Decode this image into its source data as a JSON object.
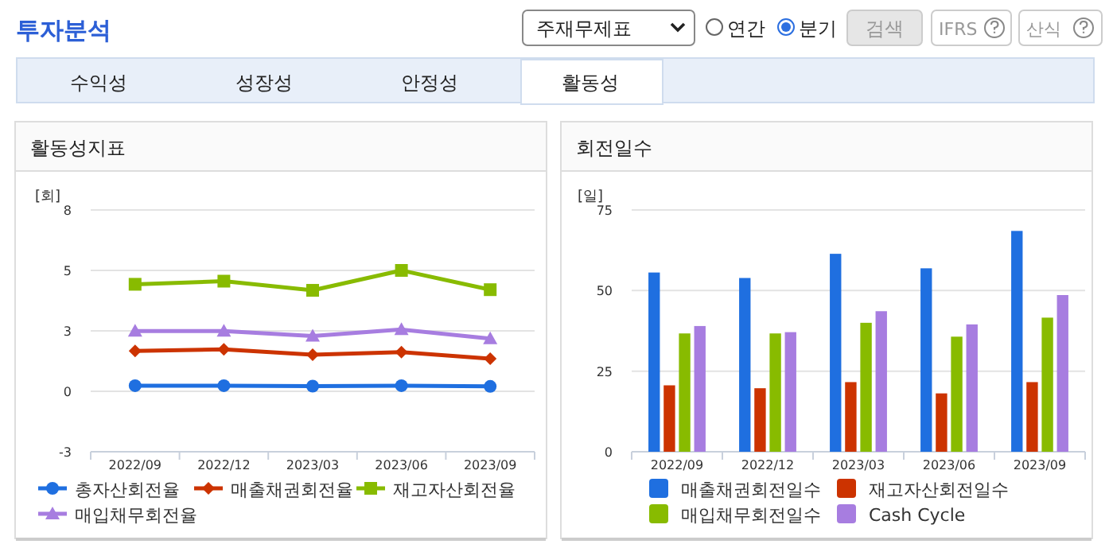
{
  "chart_data": [
    {
      "type": "other",
      "title": "투자분석",
      "annotations": [
        "주재무제표",
        "연간",
        "분기",
        "검색",
        "IFRS",
        "산식",
        "수익성",
        "성장성",
        "안정성",
        "활동성"
      ]
    },
    {
      "type": "line",
      "title": "활동성지표",
      "ylabel": "[회]",
      "categories": [
        "2022/09",
        "2022/12",
        "2023/03",
        "2023/06",
        "2023/09"
      ],
      "ylim": [
        -2.7,
        8.1
      ],
      "yticks": [
        {
          "value": -2.7,
          "label": "-3"
        },
        0,
        {
          "value": 2.7,
          "label": "3"
        },
        {
          "value": 5.4,
          "label": "5"
        },
        {
          "value": 8.1,
          "label": "8"
        }
      ],
      "grid": "y",
      "legend": "bottom",
      "line_style": "solid",
      "series": [
        {
          "name": "총자산회전율",
          "color": "#1f6fe0",
          "marker": "circle",
          "values": [
            0.25,
            0.25,
            0.23,
            0.25,
            0.22
          ]
        },
        {
          "name": "매출채권회전율",
          "color": "#cc3300",
          "marker": "diamond",
          "values": [
            1.8,
            1.87,
            1.63,
            1.75,
            1.46
          ]
        },
        {
          "name": "재고자산회전율",
          "color": "#88bb00",
          "marker": "square",
          "values": [
            4.78,
            4.92,
            4.51,
            5.4,
            4.54
          ]
        },
        {
          "name": "매입채무회전율",
          "color": "#a77de0",
          "marker": "triangle",
          "values": [
            2.69,
            2.69,
            2.47,
            2.76,
            2.35
          ]
        }
      ]
    },
    {
      "type": "bar",
      "title": "회전일수",
      "ylabel": "[일]",
      "categories": [
        "2022/09",
        "2022/12",
        "2023/03",
        "2023/06",
        "2023/09"
      ],
      "ylim": [
        0,
        75
      ],
      "yticks": [
        0,
        25,
        50,
        75
      ],
      "grid": "y",
      "legend": "bottom",
      "series": [
        {
          "name": "매출채권회전일수",
          "color": "#1f6fe0",
          "values": [
            55.6,
            53.9,
            61.4,
            56.9,
            68.5
          ]
        },
        {
          "name": "재고자산회전일수",
          "color": "#cc3300",
          "values": [
            20.6,
            19.7,
            21.6,
            18.1,
            21.6
          ]
        },
        {
          "name": "매입채무회전일수",
          "color": "#88bb00",
          "values": [
            36.7,
            36.7,
            40,
            35.7,
            41.6
          ]
        },
        {
          "name": "Cash Cycle",
          "color": "#a77de0",
          "values": [
            39,
            37.1,
            43.6,
            39.5,
            48.6
          ]
        }
      ]
    }
  ]
}
